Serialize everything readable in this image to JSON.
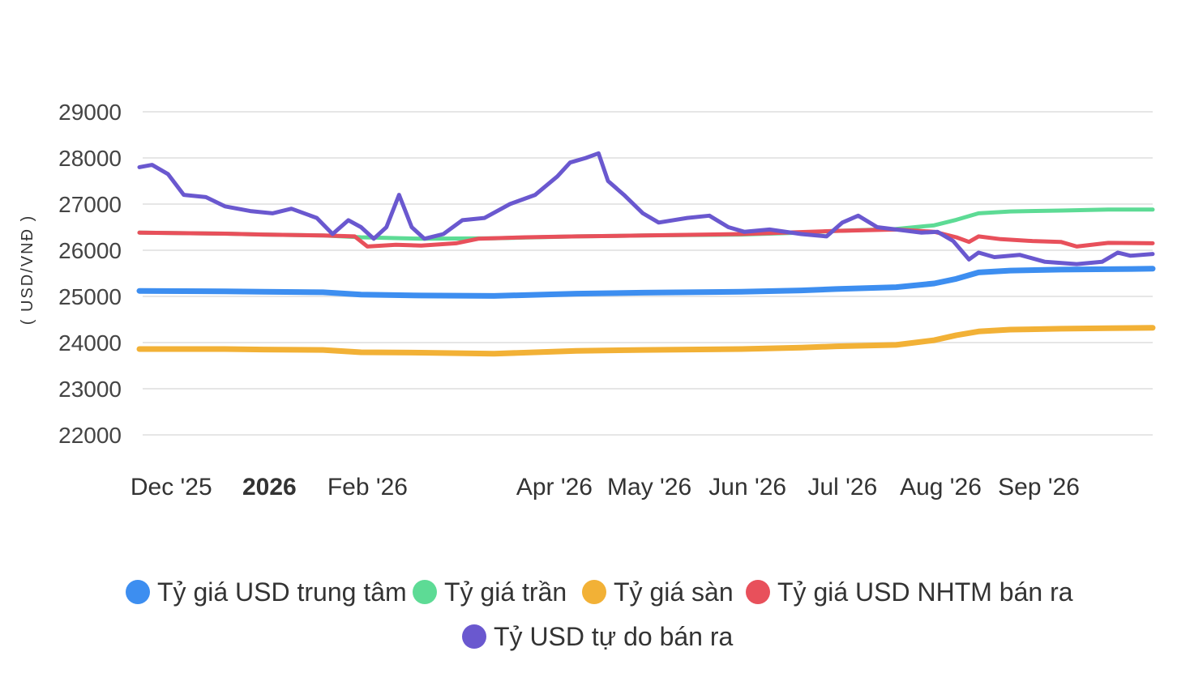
{
  "chart_data": {
    "type": "line",
    "ylabel": "( USD/VNĐ )",
    "ylim": [
      22000,
      29000
    ],
    "yticks": [
      29000,
      28000,
      27000,
      26000,
      25000,
      24000,
      23000,
      22000
    ],
    "grid": true,
    "legend_position": "bottom",
    "x_range": [
      "2025-11-23",
      "2026-10-09"
    ],
    "x_ticks": [
      {
        "label": "Dec '25",
        "date": "2025-12-01",
        "bold": false
      },
      {
        "label": "2026",
        "date": "2026-01-01",
        "bold": true
      },
      {
        "label": "Feb '26",
        "date": "2026-02-01",
        "bold": false
      },
      {
        "label": "Apr '26",
        "date": "2026-04-01",
        "bold": false
      },
      {
        "label": "May '26",
        "date": "2026-05-01",
        "bold": false
      },
      {
        "label": "Jun '26",
        "date": "2026-06-01",
        "bold": false
      },
      {
        "label": "Jul '26",
        "date": "2026-07-01",
        "bold": false
      },
      {
        "label": "Aug '26",
        "date": "2026-08-01",
        "bold": false
      },
      {
        "label": "Sep '26",
        "date": "2026-09-01",
        "bold": false
      }
    ],
    "series": [
      {
        "name": "Tỷ giá USD trung tâm",
        "color": "#3d8ef0",
        "points": [
          [
            "2025-11-23",
            25120
          ],
          [
            "2025-12-20",
            25110
          ],
          [
            "2026-01-01",
            25100
          ],
          [
            "2026-01-20",
            25090
          ],
          [
            "2026-02-01",
            25040
          ],
          [
            "2026-02-20",
            25020
          ],
          [
            "2026-03-15",
            25010
          ],
          [
            "2026-04-10",
            25060
          ],
          [
            "2026-05-01",
            25080
          ],
          [
            "2026-06-01",
            25100
          ],
          [
            "2026-06-20",
            25130
          ],
          [
            "2026-07-01",
            25160
          ],
          [
            "2026-07-20",
            25200
          ],
          [
            "2026-08-01",
            25280
          ],
          [
            "2026-08-08",
            25380
          ],
          [
            "2026-08-15",
            25520
          ],
          [
            "2026-08-25",
            25560
          ],
          [
            "2026-09-10",
            25580
          ],
          [
            "2026-09-25",
            25590
          ],
          [
            "2026-10-09",
            25600
          ]
        ]
      },
      {
        "name": "Tỷ giá trần",
        "color": "#5ddb95",
        "points": [
          [
            "2025-11-23",
            26380
          ],
          [
            "2025-12-20",
            26360
          ],
          [
            "2026-01-01",
            26340
          ],
          [
            "2026-01-20",
            26320
          ],
          [
            "2026-02-01",
            26280
          ],
          [
            "2026-02-20",
            26250
          ],
          [
            "2026-03-15",
            26260
          ],
          [
            "2026-04-10",
            26300
          ],
          [
            "2026-05-01",
            26320
          ],
          [
            "2026-06-01",
            26340
          ],
          [
            "2026-06-20",
            26380
          ],
          [
            "2026-07-01",
            26420
          ],
          [
            "2026-07-20",
            26460
          ],
          [
            "2026-08-01",
            26540
          ],
          [
            "2026-08-08",
            26660
          ],
          [
            "2026-08-15",
            26800
          ],
          [
            "2026-08-25",
            26840
          ],
          [
            "2026-09-10",
            26860
          ],
          [
            "2026-09-25",
            26880
          ],
          [
            "2026-10-09",
            26880
          ]
        ]
      },
      {
        "name": "Tỷ giá sàn",
        "color": "#f2b136",
        "points": [
          [
            "2025-11-23",
            23860
          ],
          [
            "2025-12-20",
            23860
          ],
          [
            "2026-01-01",
            23850
          ],
          [
            "2026-01-20",
            23840
          ],
          [
            "2026-02-01",
            23790
          ],
          [
            "2026-02-20",
            23780
          ],
          [
            "2026-03-15",
            23760
          ],
          [
            "2026-04-10",
            23820
          ],
          [
            "2026-05-01",
            23840
          ],
          [
            "2026-06-01",
            23860
          ],
          [
            "2026-06-20",
            23890
          ],
          [
            "2026-07-01",
            23920
          ],
          [
            "2026-07-20",
            23950
          ],
          [
            "2026-08-01",
            24050
          ],
          [
            "2026-08-08",
            24160
          ],
          [
            "2026-08-15",
            24240
          ],
          [
            "2026-08-25",
            24280
          ],
          [
            "2026-09-10",
            24300
          ],
          [
            "2026-09-25",
            24310
          ],
          [
            "2026-10-09",
            24320
          ]
        ]
      },
      {
        "name": "Tỷ giá USD NHTM bán ra",
        "color": "#e8505b",
        "points": [
          [
            "2025-11-23",
            26380
          ],
          [
            "2025-12-20",
            26360
          ],
          [
            "2026-01-01",
            26340
          ],
          [
            "2026-01-20",
            26320
          ],
          [
            "2026-01-30",
            26300
          ],
          [
            "2026-02-03",
            26080
          ],
          [
            "2026-02-12",
            26120
          ],
          [
            "2026-02-20",
            26100
          ],
          [
            "2026-03-03",
            26150
          ],
          [
            "2026-03-10",
            26250
          ],
          [
            "2026-03-25",
            26280
          ],
          [
            "2026-04-10",
            26300
          ],
          [
            "2026-05-01",
            26320
          ],
          [
            "2026-06-01",
            26350
          ],
          [
            "2026-07-01",
            26420
          ],
          [
            "2026-07-20",
            26450
          ],
          [
            "2026-08-01",
            26400
          ],
          [
            "2026-08-08",
            26280
          ],
          [
            "2026-08-12",
            26180
          ],
          [
            "2026-08-15",
            26300
          ],
          [
            "2026-08-22",
            26240
          ],
          [
            "2026-09-01",
            26200
          ],
          [
            "2026-09-10",
            26180
          ],
          [
            "2026-09-15",
            26080
          ],
          [
            "2026-09-25",
            26160
          ],
          [
            "2026-10-09",
            26150
          ]
        ]
      },
      {
        "name": "Tỷ USD tự do bán ra",
        "color": "#6a58cf",
        "points": [
          [
            "2025-11-23",
            27800
          ],
          [
            "2025-11-27",
            27850
          ],
          [
            "2025-12-02",
            27650
          ],
          [
            "2025-12-07",
            27200
          ],
          [
            "2025-12-14",
            27150
          ],
          [
            "2025-12-20",
            26950
          ],
          [
            "2025-12-28",
            26850
          ],
          [
            "2026-01-04",
            26800
          ],
          [
            "2026-01-10",
            26900
          ],
          [
            "2026-01-18",
            26700
          ],
          [
            "2026-01-23",
            26350
          ],
          [
            "2026-01-28",
            26650
          ],
          [
            "2026-02-01",
            26500
          ],
          [
            "2026-02-05",
            26250
          ],
          [
            "2026-02-09",
            26500
          ],
          [
            "2026-02-13",
            27200
          ],
          [
            "2026-02-17",
            26500
          ],
          [
            "2026-02-21",
            26250
          ],
          [
            "2026-02-27",
            26350
          ],
          [
            "2026-03-05",
            26650
          ],
          [
            "2026-03-12",
            26700
          ],
          [
            "2026-03-20",
            27000
          ],
          [
            "2026-03-28",
            27200
          ],
          [
            "2026-04-04",
            27600
          ],
          [
            "2026-04-08",
            27900
          ],
          [
            "2026-04-13",
            28000
          ],
          [
            "2026-04-17",
            28100
          ],
          [
            "2026-04-20",
            27500
          ],
          [
            "2026-04-25",
            27200
          ],
          [
            "2026-05-01",
            26800
          ],
          [
            "2026-05-06",
            26600
          ],
          [
            "2026-05-15",
            26700
          ],
          [
            "2026-05-22",
            26750
          ],
          [
            "2026-05-28",
            26500
          ],
          [
            "2026-06-02",
            26400
          ],
          [
            "2026-06-10",
            26450
          ],
          [
            "2026-06-20",
            26350
          ],
          [
            "2026-06-28",
            26300
          ],
          [
            "2026-07-03",
            26600
          ],
          [
            "2026-07-08",
            26750
          ],
          [
            "2026-07-14",
            26500
          ],
          [
            "2026-07-20",
            26450
          ],
          [
            "2026-07-28",
            26380
          ],
          [
            "2026-08-02",
            26400
          ],
          [
            "2026-08-07",
            26200
          ],
          [
            "2026-08-12",
            25800
          ],
          [
            "2026-08-15",
            25950
          ],
          [
            "2026-08-20",
            25850
          ],
          [
            "2026-08-28",
            25900
          ],
          [
            "2026-09-05",
            25750
          ],
          [
            "2026-09-15",
            25700
          ],
          [
            "2026-09-23",
            25750
          ],
          [
            "2026-09-28",
            25950
          ],
          [
            "2026-10-02",
            25880
          ],
          [
            "2026-10-09",
            25920
          ]
        ]
      }
    ]
  }
}
